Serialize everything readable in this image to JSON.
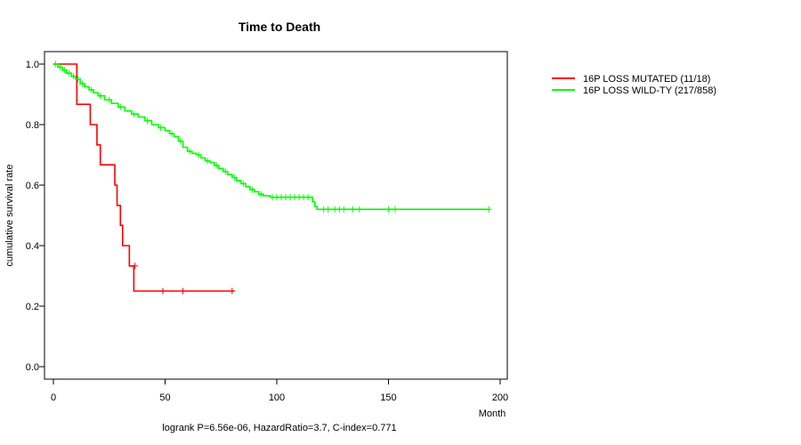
{
  "chart_data": {
    "type": "line",
    "subtype": "kaplan-meier",
    "title": "Time to Death",
    "xlabel": "Month",
    "ylabel": "cumulative survival rate",
    "xlim": [
      0,
      200
    ],
    "ylim": [
      0,
      1
    ],
    "x_ticks": [
      0,
      50,
      100,
      150,
      200
    ],
    "y_ticks": [
      0.0,
      0.2,
      0.4,
      0.6,
      0.8,
      1.0
    ],
    "y_tick_labels": [
      "0.0",
      "0.2",
      "0.4",
      "0.6",
      "0.8",
      "1.0"
    ],
    "legend_position": "top-right, outside plot",
    "footer": "logrank P=6.56e-06, HazardRatio=3.7, C-index=0.771",
    "series": [
      {
        "name": "16P LOSS MUTATED (11/18)",
        "color": "#ff0000",
        "step_points": [
          [
            0,
            1.0
          ],
          [
            10.5,
            0.867
          ],
          [
            16.5,
            0.8
          ],
          [
            19.5,
            0.733
          ],
          [
            21,
            0.667
          ],
          [
            27.5,
            0.6
          ],
          [
            28.5,
            0.533
          ],
          [
            30,
            0.467
          ],
          [
            31,
            0.4
          ],
          [
            34,
            0.333
          ],
          [
            36,
            0.25
          ],
          [
            81,
            0.25
          ]
        ],
        "censor_points": [
          [
            36.5,
            0.333
          ],
          [
            49,
            0.25
          ],
          [
            58,
            0.25
          ],
          [
            80,
            0.25
          ]
        ]
      },
      {
        "name": "16P LOSS WILD-TY (217/858)",
        "color": "#00ff00",
        "step_points": [
          [
            0,
            1.0
          ],
          [
            2,
            0.99
          ],
          [
            4,
            0.98
          ],
          [
            6,
            0.97
          ],
          [
            8,
            0.96
          ],
          [
            10,
            0.95
          ],
          [
            12,
            0.935
          ],
          [
            14,
            0.925
          ],
          [
            16,
            0.915
          ],
          [
            18,
            0.905
          ],
          [
            20,
            0.895
          ],
          [
            23,
            0.882
          ],
          [
            26,
            0.87
          ],
          [
            29,
            0.858
          ],
          [
            32,
            0.845
          ],
          [
            35,
            0.835
          ],
          [
            38,
            0.825
          ],
          [
            41,
            0.813
          ],
          [
            44,
            0.8
          ],
          [
            47,
            0.79
          ],
          [
            50,
            0.78
          ],
          [
            52,
            0.77
          ],
          [
            54,
            0.76
          ],
          [
            56,
            0.745
          ],
          [
            58,
            0.725
          ],
          [
            60,
            0.712
          ],
          [
            62,
            0.705
          ],
          [
            64,
            0.7
          ],
          [
            66,
            0.69
          ],
          [
            68,
            0.68
          ],
          [
            70,
            0.675
          ],
          [
            72,
            0.665
          ],
          [
            74,
            0.655
          ],
          [
            76,
            0.645
          ],
          [
            78,
            0.635
          ],
          [
            80,
            0.625
          ],
          [
            82,
            0.615
          ],
          [
            84,
            0.605
          ],
          [
            86,
            0.595
          ],
          [
            88,
            0.585
          ],
          [
            90,
            0.578
          ],
          [
            92,
            0.57
          ],
          [
            94,
            0.565
          ],
          [
            97,
            0.56
          ],
          [
            114,
            0.56
          ],
          [
            116,
            0.545
          ],
          [
            117,
            0.53
          ],
          [
            118,
            0.52
          ],
          [
            195,
            0.52
          ]
        ],
        "censor_points": [
          [
            1,
            1.0
          ],
          [
            3,
            0.99
          ],
          [
            5,
            0.98
          ],
          [
            7,
            0.97
          ],
          [
            9,
            0.96
          ],
          [
            11,
            0.95
          ],
          [
            13,
            0.935
          ],
          [
            17,
            0.915
          ],
          [
            21,
            0.895
          ],
          [
            25,
            0.882
          ],
          [
            30,
            0.858
          ],
          [
            36,
            0.835
          ],
          [
            42,
            0.813
          ],
          [
            48,
            0.79
          ],
          [
            53,
            0.77
          ],
          [
            57,
            0.745
          ],
          [
            61,
            0.712
          ],
          [
            65,
            0.7
          ],
          [
            69,
            0.68
          ],
          [
            73,
            0.665
          ],
          [
            77,
            0.645
          ],
          [
            81,
            0.625
          ],
          [
            85,
            0.605
          ],
          [
            89,
            0.585
          ],
          [
            93,
            0.57
          ],
          [
            98,
            0.56
          ],
          [
            100,
            0.56
          ],
          [
            102,
            0.56
          ],
          [
            104,
            0.56
          ],
          [
            106,
            0.56
          ],
          [
            108,
            0.56
          ],
          [
            110,
            0.56
          ],
          [
            112,
            0.56
          ],
          [
            114,
            0.56
          ],
          [
            121,
            0.52
          ],
          [
            123,
            0.52
          ],
          [
            126,
            0.52
          ],
          [
            128,
            0.52
          ],
          [
            130,
            0.52
          ],
          [
            134,
            0.52
          ],
          [
            137,
            0.52
          ],
          [
            150,
            0.52
          ],
          [
            153,
            0.52
          ],
          [
            195,
            0.52
          ]
        ]
      }
    ]
  }
}
